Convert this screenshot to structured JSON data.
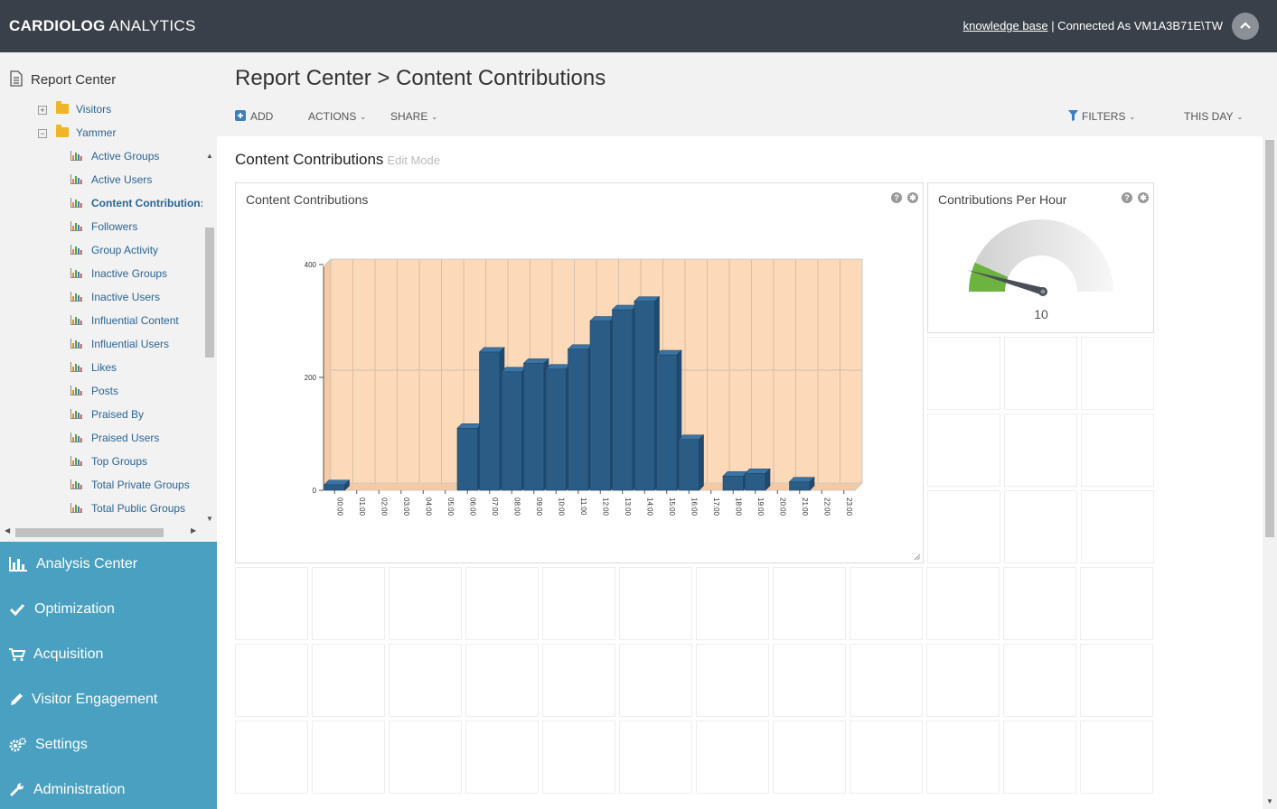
{
  "app": {
    "brand_bold": "CARDIOLOG",
    "brand_light": " ANALYTICS",
    "knowledge_base": "knowledge base",
    "connected_as": " | Connected As VM1A3B71E\\TW"
  },
  "sidebar": {
    "report_center": "Report Center",
    "tree": [
      {
        "label": "Visitors",
        "type": "folder",
        "expander": "+"
      },
      {
        "label": "Yammer",
        "type": "folder",
        "expander": "−"
      },
      {
        "label": "Active Groups",
        "type": "report"
      },
      {
        "label": "Active Users",
        "type": "report"
      },
      {
        "label": "Content Contribution:",
        "type": "report",
        "active": true
      },
      {
        "label": "Followers",
        "type": "report"
      },
      {
        "label": "Group Activity",
        "type": "report"
      },
      {
        "label": "Inactive Groups",
        "type": "report"
      },
      {
        "label": "Inactive Users",
        "type": "report"
      },
      {
        "label": "Influential Content",
        "type": "report"
      },
      {
        "label": "Influential Users",
        "type": "report"
      },
      {
        "label": "Likes",
        "type": "report"
      },
      {
        "label": "Posts",
        "type": "report"
      },
      {
        "label": "Praised By",
        "type": "report"
      },
      {
        "label": "Praised Users",
        "type": "report"
      },
      {
        "label": "Top Groups",
        "type": "report"
      },
      {
        "label": "Total Private Groups",
        "type": "report"
      },
      {
        "label": "Total Public Groups",
        "type": "report"
      }
    ],
    "nav": [
      {
        "label": "Analysis Center",
        "icon": "bar-chart-icon"
      },
      {
        "label": "Optimization",
        "icon": "check-icon"
      },
      {
        "label": "Acquisition",
        "icon": "cart-icon"
      },
      {
        "label": "Visitor Engagement",
        "icon": "pencil-icon"
      },
      {
        "label": "Settings",
        "icon": "gears-icon"
      },
      {
        "label": "Administration",
        "icon": "wrench-icon"
      }
    ]
  },
  "main": {
    "title": "Report Center > Content Contributions",
    "toolbar": {
      "add": "ADD",
      "actions": "ACTIONS",
      "share": "SHARE",
      "filters": "FILTERS",
      "period": "THIS DAY"
    },
    "dashboard_title": "Content Contributions",
    "edit_mode": "Edit Mode",
    "widget1_title": "Content Contributions",
    "widget2_title": "Contributions Per Hour",
    "gauge_value": "10",
    "gauge_fraction": 0.06
  },
  "colors": {
    "topbar": "#3a4049",
    "nav": "#4aa0c0",
    "bar": "#2a5c86",
    "plot_bg": "#fcd9b8",
    "gauge_green": "#6db33f"
  },
  "chart_data": {
    "type": "bar",
    "categories": [
      "00:00",
      "01:00",
      "02:00",
      "03:00",
      "04:00",
      "05:00",
      "06:00",
      "07:00",
      "08:00",
      "09:00",
      "10:00",
      "11:00",
      "12:00",
      "13:00",
      "14:00",
      "15:00",
      "16:00",
      "17:00",
      "18:00",
      "19:00",
      "20:00",
      "21:00",
      "22:00",
      "23:00"
    ],
    "values": [
      10,
      0,
      0,
      0,
      0,
      0,
      110,
      245,
      210,
      225,
      215,
      250,
      300,
      320,
      335,
      240,
      90,
      0,
      25,
      30,
      0,
      15,
      0,
      0
    ],
    "yticks": [
      0,
      200,
      400
    ],
    "ylim": [
      0,
      400
    ],
    "grid": true
  }
}
